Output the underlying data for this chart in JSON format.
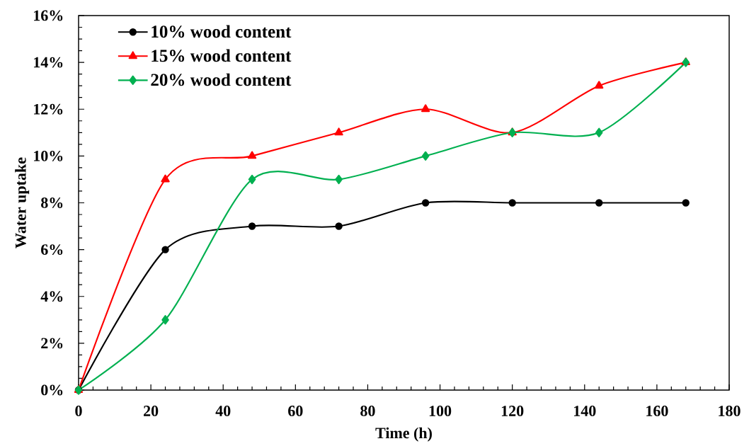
{
  "chart_data": {
    "type": "line",
    "xlabel": "Time (h)",
    "ylabel": "Water uptake",
    "x": [
      0,
      24,
      48,
      72,
      96,
      120,
      144,
      168
    ],
    "series": [
      {
        "name": "10% wood content",
        "color": "#000000",
        "marker": "circle",
        "values": [
          0,
          6,
          7,
          7,
          8,
          8,
          8,
          8
        ]
      },
      {
        "name": "15% wood content",
        "color": "#ff0000",
        "marker": "triangle",
        "values": [
          0,
          9,
          10,
          11,
          12,
          11,
          13,
          14
        ]
      },
      {
        "name": "20% wood content",
        "color": "#00b050",
        "marker": "diamond",
        "values": [
          0,
          3,
          9,
          9,
          10,
          11,
          11,
          14
        ]
      }
    ],
    "xlim": [
      0,
      180
    ],
    "xticks": [
      0,
      20,
      40,
      60,
      80,
      100,
      120,
      140,
      160,
      180
    ],
    "ylim": [
      0,
      16
    ],
    "yticks": [
      {
        "value": 0,
        "label": "0%"
      },
      {
        "value": 2,
        "label": "2%"
      },
      {
        "value": 4,
        "label": "4%"
      },
      {
        "value": 6,
        "label": "6%"
      },
      {
        "value": 8,
        "label": "8%"
      },
      {
        "value": 10,
        "label": "10%"
      },
      {
        "value": 12,
        "label": "12%"
      },
      {
        "value": 14,
        "label": "14%"
      },
      {
        "value": 16,
        "label": "16%"
      }
    ],
    "grid": false,
    "legend": "top left",
    "line_style": "solid"
  }
}
